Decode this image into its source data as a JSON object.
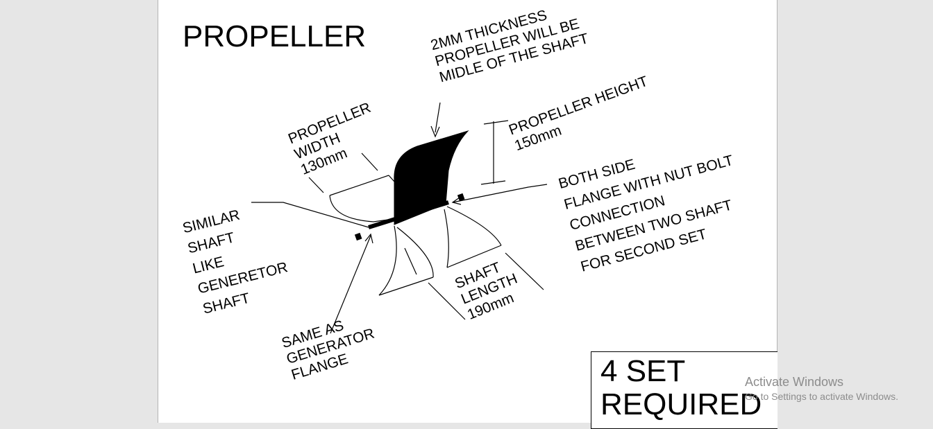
{
  "title": "PROPELLER",
  "notes": {
    "thickness": "2MM THICKNESS\nPROPELLER WILL BE\nMIDLE OF THE SHAFT",
    "height": "PROPELLER HEIGHT\n150mm",
    "width": "PROPELLER\nWIDTH\n130mm",
    "similar_shaft": "SIMILAR\nSHAFT\nLIKE\nGENERETOR\nSHAFT",
    "both_side": "BOTH SIDE\nFLANGE WITH NUT BOLT\nCONNECTION\nBETWEEN TWO SHAFT\nFOR SECOND SET",
    "shaft_length": "SHAFT\nLENGTH\n190mm",
    "same_as": "SAME AS\nGENERATOR\nFLANGE"
  },
  "required": "4 SET\nREQUIRED",
  "watermark": {
    "title": "Activate Windows",
    "subtitle": "Go to Settings to activate Windows."
  },
  "colors": {
    "sheet": "#ffffff",
    "ink": "#000000",
    "background": "#e6e6e6",
    "watermark": "#8c8c8c"
  }
}
